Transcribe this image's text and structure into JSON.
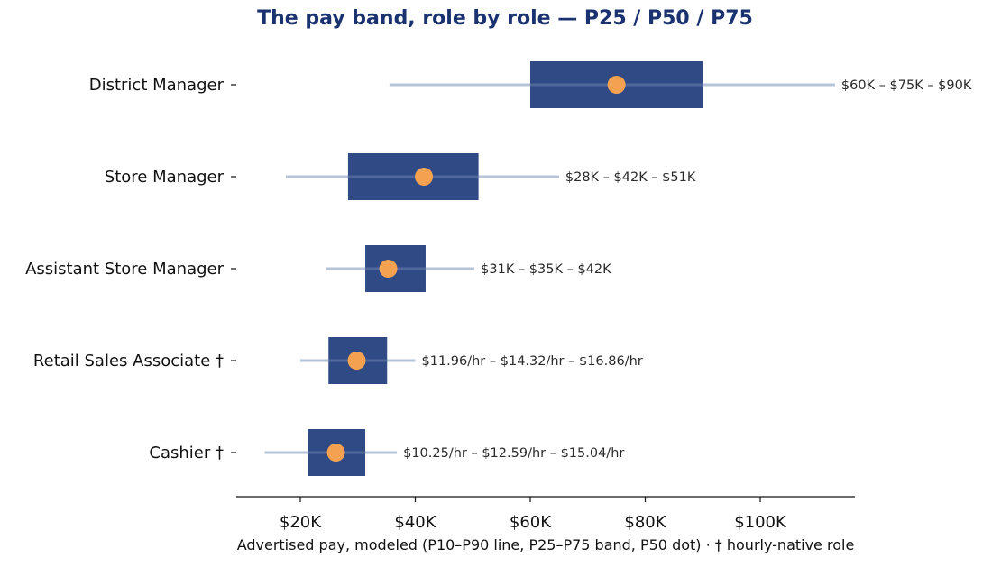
{
  "chart_data": {
    "type": "range",
    "title": "The pay band, role by role — P25 / P50 / P75",
    "xlabel": "Advertised pay, modeled (P10–P90 line, P25–P75 band, P50 dot) · † hourly-native role",
    "xlim": [
      10000,
      118000
    ],
    "xticks": [
      20000,
      40000,
      60000,
      80000,
      100000
    ],
    "xtick_labels": [
      "$20K",
      "$40K",
      "$60K",
      "$80K",
      "$100K"
    ],
    "colors": {
      "band": "#2f4a85",
      "whisker": "#b6c3d8",
      "median": "#f4a151",
      "title": "#1a3270"
    },
    "categories": [
      "District Manager",
      "Store Manager",
      "Assistant Store Manager",
      "Retail Sales Associate †",
      "Cashier †"
    ],
    "series": [
      {
        "role": "District Manager",
        "p10": 35500,
        "p25": 60000,
        "p50": 75000,
        "p75": 90000,
        "p90": 113000,
        "label": "$60K – $75K – $90K"
      },
      {
        "role": "Store Manager",
        "p10": 17500,
        "p25": 28300,
        "p50": 41500,
        "p75": 51000,
        "p90": 65000,
        "label": "$28K – $42K – $51K"
      },
      {
        "role": "Assistant Store Manager",
        "p10": 24500,
        "p25": 31300,
        "p50": 35300,
        "p75": 41800,
        "p90": 50300,
        "label": "$31K – $35K – $42K"
      },
      {
        "role": "Retail Sales Associate †",
        "p10": 20000,
        "p25": 24900,
        "p50": 29800,
        "p75": 35100,
        "p90": 40000,
        "label": "$11.96/hr – $14.32/hr – $16.86/hr"
      },
      {
        "role": "Cashier †",
        "p10": 13800,
        "p25": 21300,
        "p50": 26200,
        "p75": 31300,
        "p90": 36800,
        "label": "$10.25/hr – $12.59/hr – $15.04/hr"
      }
    ]
  }
}
